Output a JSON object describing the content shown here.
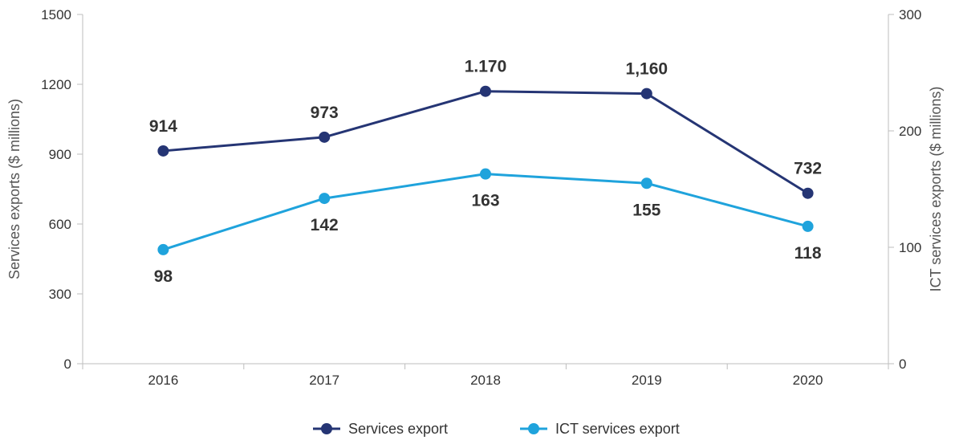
{
  "chart_data": {
    "type": "line",
    "categories": [
      "2016",
      "2017",
      "2018",
      "2019",
      "2020"
    ],
    "ylabel": "Services exports ($ millions)",
    "ylabel_right": "ICT services exports ($ millions)",
    "ylim": [
      0,
      1500
    ],
    "ylim_right": [
      0,
      300
    ],
    "yticks": [
      "0",
      "300",
      "600",
      "900",
      "1200",
      "1500"
    ],
    "yticks_right": [
      "0",
      "100",
      "200",
      "300"
    ],
    "grid": false,
    "legend_position": "bottom-center",
    "series": [
      {
        "name": "Services export",
        "axis": "left",
        "color": "#253574",
        "values": [
          914,
          973,
          1170,
          1160,
          732
        ],
        "labels": [
          "914",
          "973",
          "1.170",
          "1,160",
          "732"
        ],
        "label_position": "above"
      },
      {
        "name": "ICT services export",
        "axis": "right",
        "color": "#1fa3dc",
        "values": [
          98,
          142,
          163,
          155,
          118
        ],
        "labels": [
          "98",
          "142",
          "163",
          "155",
          "118"
        ],
        "label_position": "below"
      }
    ]
  }
}
